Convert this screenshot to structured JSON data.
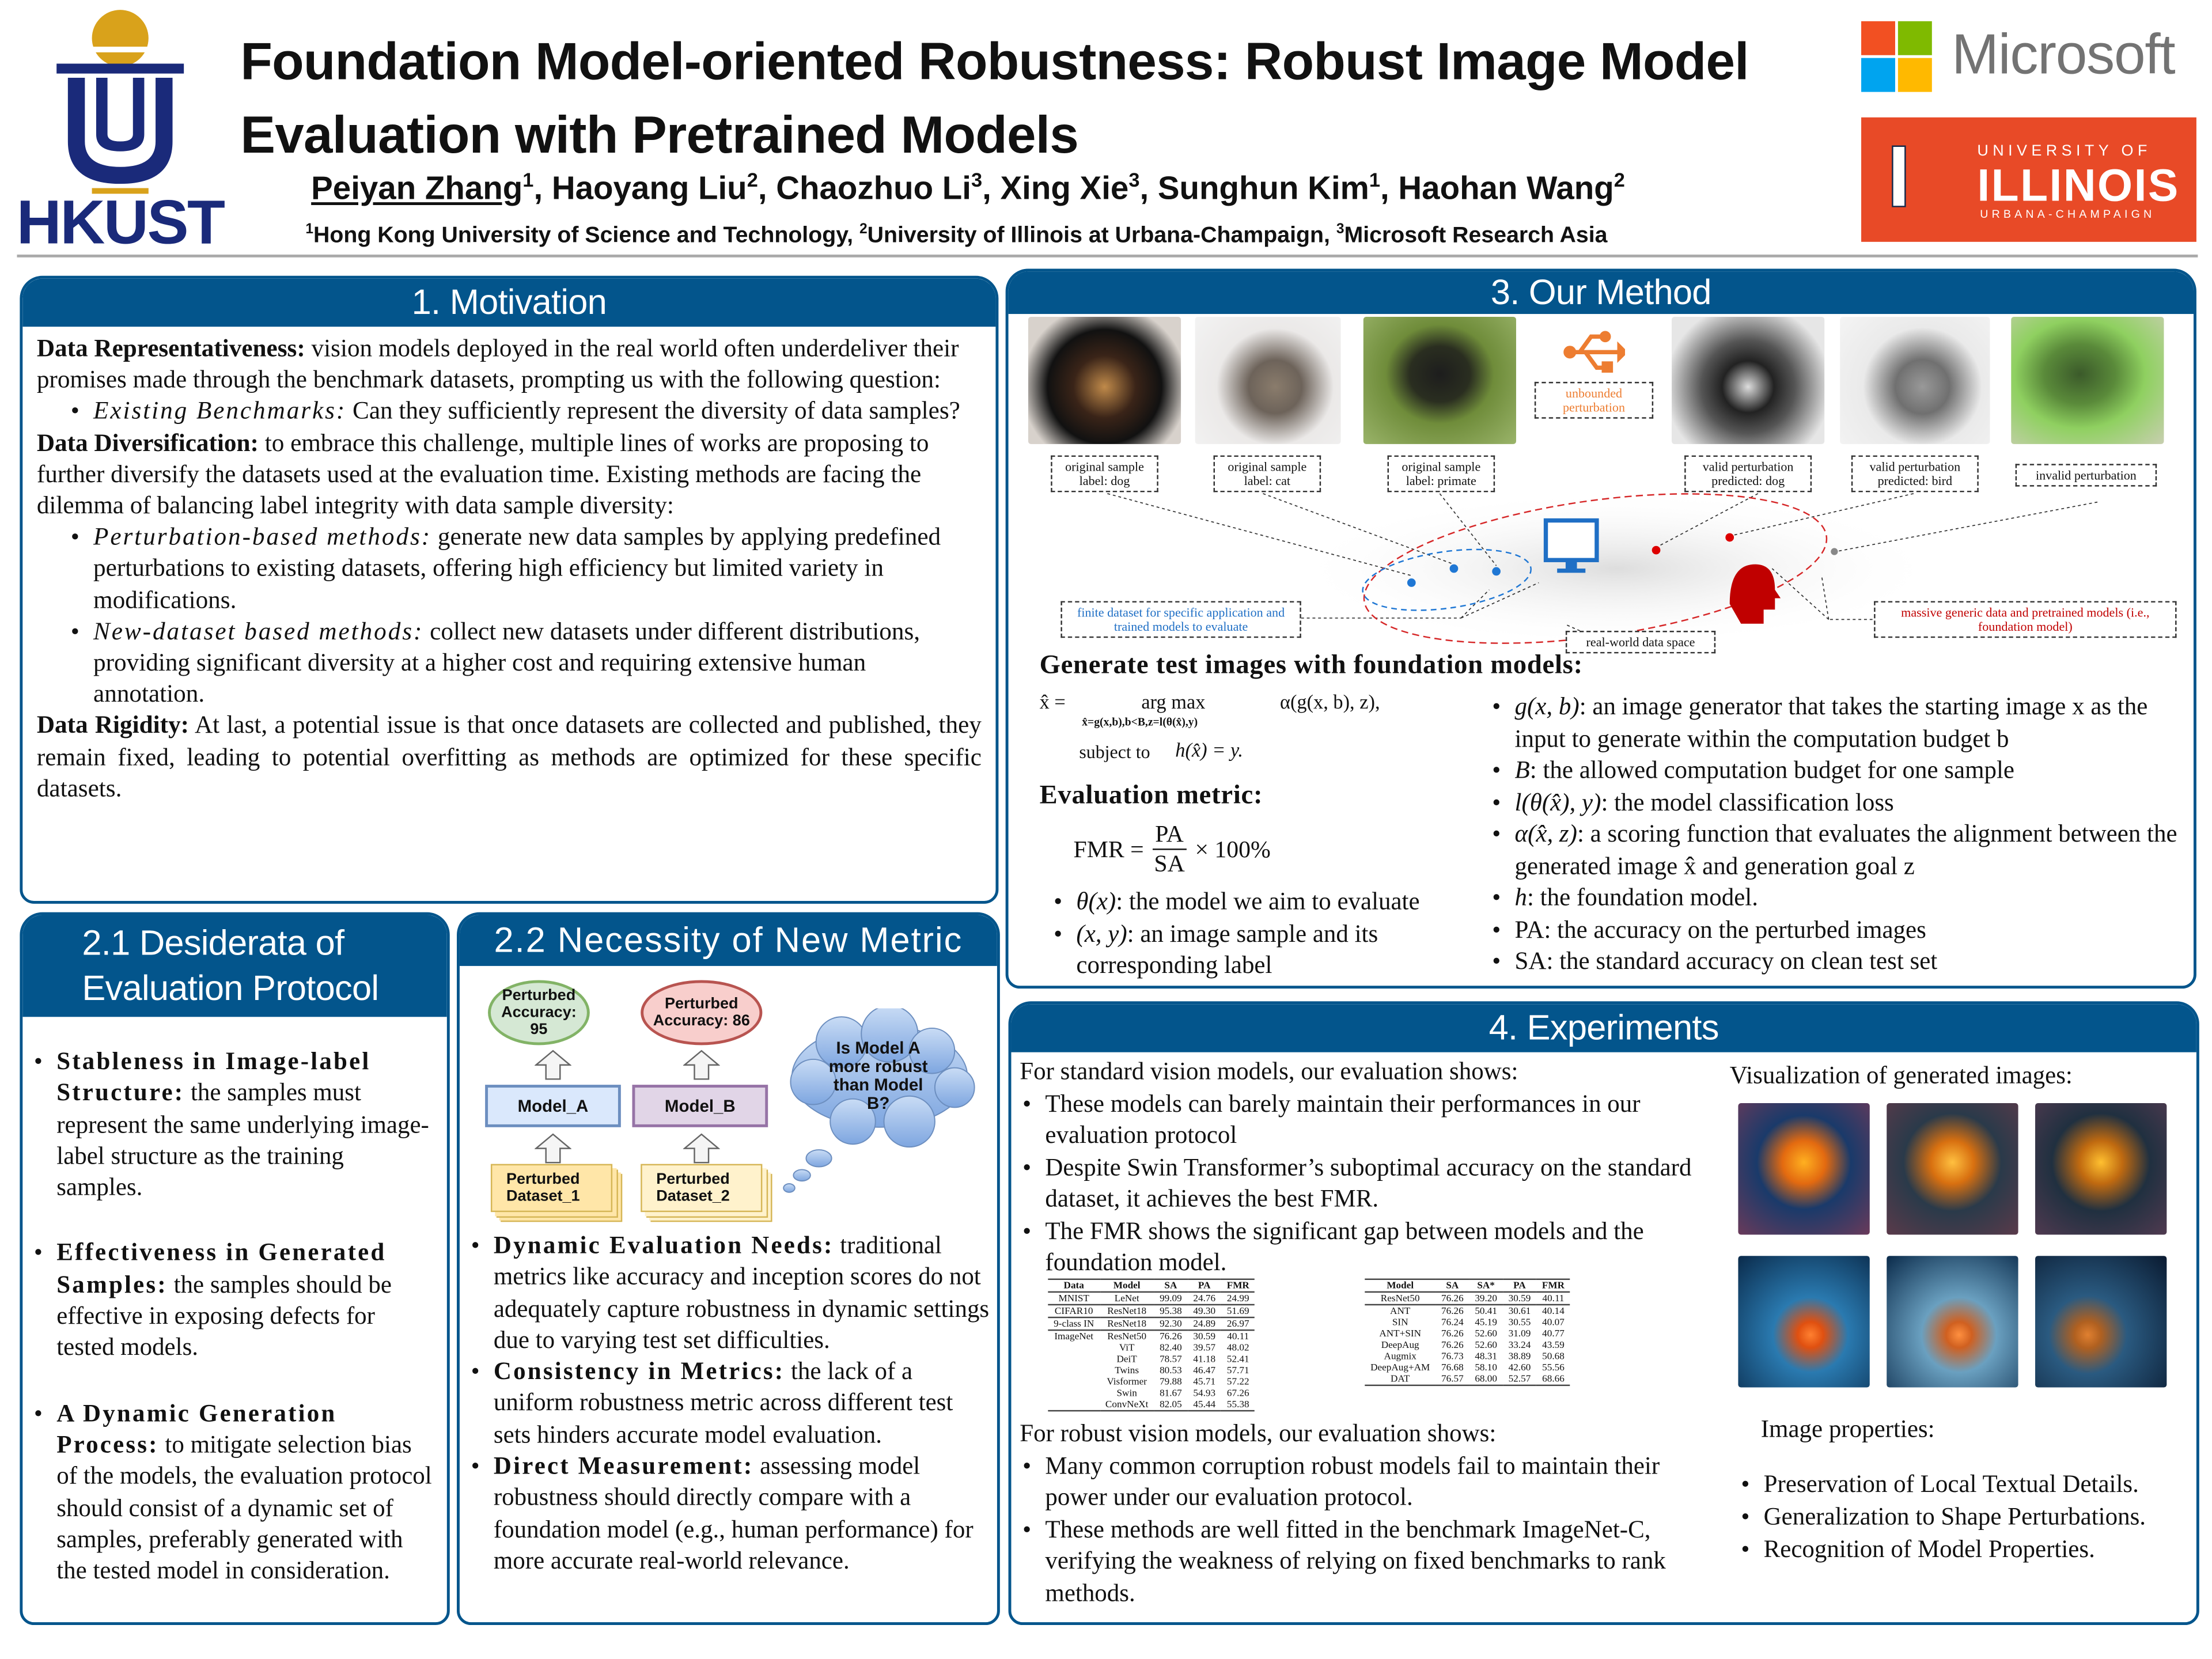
{
  "header": {
    "title_line1": "Foundation Model-oriented Robustness: Robust Image Model",
    "title_line2": "Evaluation with Pretrained Models",
    "authors": [
      {
        "name": "Peiyan Zhang",
        "sup": "1"
      },
      {
        "name": "Haoyang Liu",
        "sup": "2"
      },
      {
        "name": "Chaozhuo Li",
        "sup": "3"
      },
      {
        "name": "Xing Xie",
        "sup": "3"
      },
      {
        "name": "Sunghun Kim",
        "sup": "1"
      },
      {
        "name": "Haohan Wang",
        "sup": "2"
      }
    ],
    "affiliations": [
      {
        "sup": "1",
        "name": "Hong Kong University of Science and Technology, "
      },
      {
        "sup": "2",
        "name": "University of Illinois at Urbana-Champaign, "
      },
      {
        "sup": "3",
        "name": "Microsoft Research Asia"
      }
    ],
    "logos": {
      "hkust": "HKUST",
      "microsoft": "Microsoft",
      "illinois_top": "UNIVERSITY OF",
      "illinois_main": "ILLINOIS",
      "illinois_bottom": "URBANA-CHAMPAIGN"
    },
    "colors": {
      "panel_blue": "#03558c",
      "illinois_orange": "#e84a27",
      "hkust_blue": "#1a2a7a",
      "hkust_gold": "#d9a21b"
    }
  },
  "motivation": {
    "title": "1. Motivation",
    "p1_label": "Data Representativeness:",
    "p1_text": " vision models deployed in the real world often underdeliver their promises made through the benchmark datasets, prompting us with the following question:",
    "p1_bullet_label": "Existing Benchmarks:",
    "p1_bullet_text": " Can they sufficiently represent the diversity of data samples?",
    "p2_label": "Data Diversification:",
    "p2_text": " to embrace this challenge, multiple lines of works are proposing to further diversify the datasets used at the evaluation time. Existing methods are facing the dilemma of balancing label integrity with data sample diversity:",
    "p2_bullets": [
      {
        "label": "Perturbation-based methods:",
        "text": " generate new data samples by applying predefined perturbations to existing datasets, offering high efficiency but limited variety in modifications."
      },
      {
        "label": "New-dataset based methods:",
        "text": " collect new datasets under different distributions, providing significant diversity at a higher cost and requiring extensive human annotation."
      }
    ],
    "p3_label": "Data Rigidity:",
    "p3_text": " At last, a potential issue is that once datasets are collected and published, they remain fixed, leading to potential overfitting as methods are optimized for these specific datasets."
  },
  "desiderata": {
    "title_line1": "2.1 Desiderata of",
    "title_line2": "Evaluation Protocol",
    "items": [
      {
        "label": "Stableness in Image-label Structure:",
        "text": " the samples must represent the same underlying image-label structure as the training samples."
      },
      {
        "label": "Effectiveness in Generated Samples:",
        "text": " the samples should be effective in exposing defects for tested models."
      },
      {
        "label": "A Dynamic Generation Process:",
        "text": " to mitigate selection bias of the models, the evaluation protocol should consist of a dynamic set of samples, preferably generated with the tested model in consideration."
      }
    ]
  },
  "necessity": {
    "title": "2.2 Necessity of New Metric",
    "diagram": {
      "acc_a": "Perturbed Accuracy: 95",
      "acc_b": "Perturbed Accuracy: 86",
      "model_a": "Model_A",
      "model_b": "Model_B",
      "dataset_a": "Perturbed Dataset_1",
      "dataset_b": "Perturbed Dataset_2",
      "question": "Is Model A more robust than Model B?"
    },
    "items": [
      {
        "label": "Dynamic Evaluation Needs:",
        "text": " traditional metrics like accuracy and inception scores do not adequately capture robustness in dynamic settings due to varying test set difficulties."
      },
      {
        "label": "Consistency in Metrics:",
        "text": " the lack of a uniform robustness metric across different test sets hinders accurate model evaluation."
      },
      {
        "label": "Direct Measurement:",
        "text": " assessing model robustness should directly compare with a foundation model (e.g., human performance) for more accurate real-world relevance."
      }
    ]
  },
  "method": {
    "title": "3. Our Method",
    "figure": {
      "labels": [
        "original sample\nlabel: dog",
        "original sample\nlabel: cat",
        "original sample\nlabel: primate",
        "valid perturbation\npredicted: dog",
        "valid perturbation\npredicted: bird",
        "invalid perturbation"
      ],
      "unbounded": "unbounded perturbation",
      "finite": "finite dataset for specific application and trained models to evaluate",
      "real_world": "real-world data space",
      "massive": "massive generic data and pretrained models (i.e., foundation model)"
    },
    "gen_heading": "Generate test images with foundation models:",
    "formula_lhs": "x̂ =",
    "formula_argmax": "arg max",
    "formula_sub": "x̂=g(x,b),b<B,z=l(θ(x̂),y)",
    "formula_rhs": "α(g(x, b), z),",
    "formula_subject": "subject to",
    "formula_constraint": "h(x̂) = y.",
    "eval_heading": "Evaluation metric:",
    "fmr_lhs": "FMR =",
    "fmr_num": "PA",
    "fmr_den": "SA",
    "fmr_rhs": "× 100%",
    "left_bullets": [
      {
        "math": "θ(x)",
        "text": ": the model we aim to evaluate"
      },
      {
        "math": "(x, y)",
        "text": ": an image sample and its corresponding label"
      }
    ],
    "right_bullets": [
      {
        "math": "g(x, b)",
        "text": ": an image generator that takes the starting image x as the input to generate within the computation budget b"
      },
      {
        "math": "B",
        "text": ": the allowed computation budget for one sample"
      },
      {
        "math": "l(θ(x̂), y)",
        "text": ": the model classification loss"
      },
      {
        "math": "α(x̂, z)",
        "text": ": a scoring function that evaluates the alignment between the generated image x̂ and generation goal z"
      },
      {
        "math": "h",
        "text": ": the foundation model."
      },
      {
        "math": "",
        "text": "PA: the accuracy on the perturbed images"
      },
      {
        "math": "",
        "text": "SA: the standard accuracy on clean test set"
      }
    ]
  },
  "experiments": {
    "title": "4. Experiments",
    "standard_intro": "For standard vision models, our evaluation shows:",
    "standard_bullets": [
      "These models can barely maintain their performances in our evaluation protocol",
      "Despite Swin Transformer’s suboptimal accuracy on the standard dataset, it achieves the best FMR.",
      "The FMR shows the significant gap between models and the foundation model."
    ],
    "table1": {
      "headers": [
        "Data",
        "Model",
        "SA",
        "PA",
        "FMR"
      ],
      "rows": [
        [
          "MNIST",
          "LeNet",
          "99.09",
          "24.76",
          "24.99"
        ],
        [
          "CIFAR10",
          "ResNet18",
          "95.38",
          "49.30",
          "51.69"
        ],
        [
          "9-class IN",
          "ResNet18",
          "92.30",
          "24.89",
          "26.97"
        ],
        [
          "ImageNet",
          "ResNet50",
          "76.26",
          "30.59",
          "40.11"
        ],
        [
          "",
          "ViT",
          "82.40",
          "39.57",
          "48.02"
        ],
        [
          "",
          "DeiT",
          "78.57",
          "41.18",
          "52.41"
        ],
        [
          "",
          "Twins",
          "80.53",
          "46.47",
          "57.71"
        ],
        [
          "",
          "Visformer",
          "79.88",
          "45.71",
          "57.22"
        ],
        [
          "",
          "Swin",
          "81.67",
          "54.93",
          "67.26"
        ],
        [
          "",
          "ConvNeXt",
          "82.05",
          "45.44",
          "55.38"
        ]
      ]
    },
    "table2": {
      "headers": [
        "Model",
        "SA",
        "SA*",
        "PA",
        "FMR"
      ],
      "rows": [
        [
          "ResNet50",
          "76.26",
          "39.20",
          "30.59",
          "40.11"
        ],
        [
          "ANT",
          "76.26",
          "50.41",
          "30.61",
          "40.14"
        ],
        [
          "SIN",
          "76.24",
          "45.19",
          "30.55",
          "40.07"
        ],
        [
          "ANT+SIN",
          "76.26",
          "52.60",
          "31.09",
          "40.77"
        ],
        [
          "DeepAug",
          "76.26",
          "52.60",
          "33.24",
          "43.59"
        ],
        [
          "Augmix",
          "76.73",
          "48.31",
          "38.89",
          "50.68"
        ],
        [
          "DeepAug+AM",
          "76.68",
          "58.10",
          "42.60",
          "55.56"
        ],
        [
          "DAT",
          "76.57",
          "68.00",
          "52.57",
          "68.66"
        ]
      ]
    },
    "robust_intro": "For robust vision models, our evaluation shows:",
    "robust_bullets": [
      "Many common corruption robust models fail to maintain their power under our evaluation protocol.",
      "These methods are well fitted in the benchmark ImageNet-C, verifying the weakness of relying on fixed benchmarks to rank methods."
    ],
    "vis_title": "Visualization of generated images:",
    "props_title": "Image properties:",
    "props": [
      "Preservation of Local Textual Details.",
      "Generalization to Shape Perturbations.",
      "Recognition of Model Properties."
    ]
  }
}
